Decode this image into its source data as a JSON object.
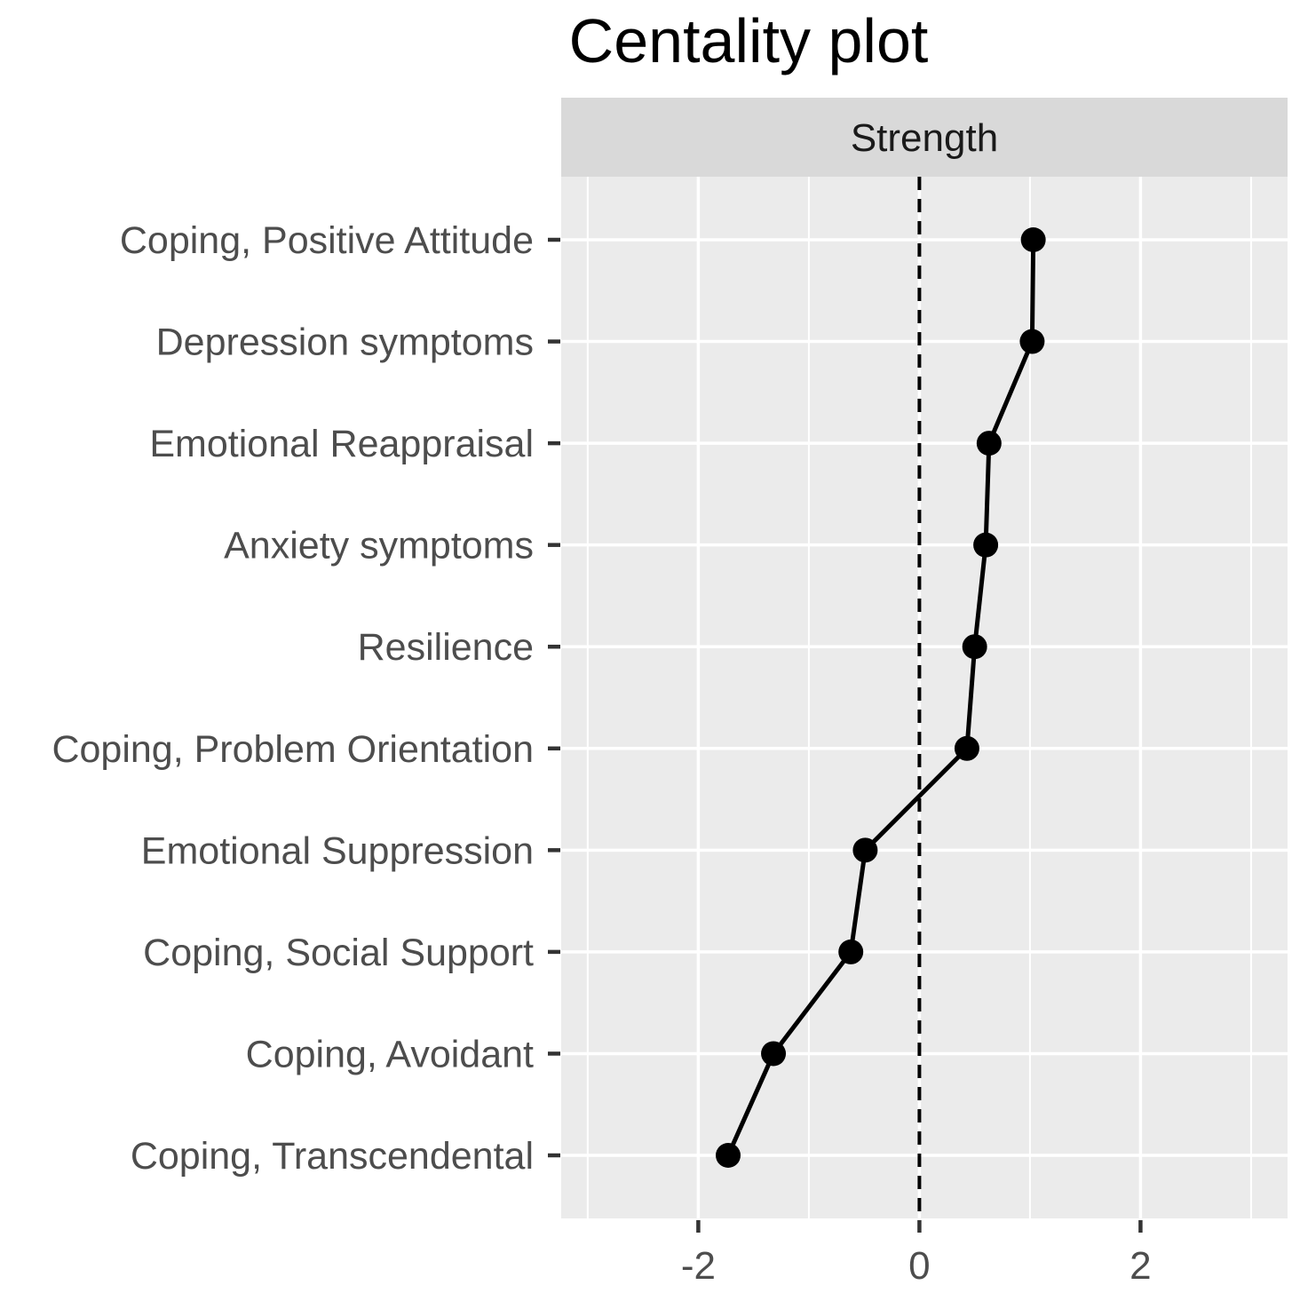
{
  "title": "Centality plot",
  "facet": {
    "label": "Strength"
  },
  "chart_data": {
    "type": "line",
    "orientation": "horizontal_dot_line",
    "title": "Centality plot",
    "facet_label": "Strength",
    "categories": [
      "Coping, Positive Attitude",
      "Depression symptoms",
      "Emotional Reappraisal",
      "Anxiety symptoms",
      "Resilience",
      "Coping, Problem Orientation",
      "Emotional Suppression",
      "Coping, Social Support",
      "Coping, Avoidant",
      "Coping, Transcendental"
    ],
    "values": [
      1.03,
      1.02,
      0.63,
      0.6,
      0.5,
      0.43,
      -0.49,
      -0.62,
      -1.32,
      -1.73
    ],
    "xlabel": "",
    "ylabel": "",
    "xlim": [
      -3.24,
      3.33
    ],
    "x_ticks": [
      -2,
      0,
      2
    ],
    "x_tick_labels": [
      "-2",
      "0",
      "2"
    ],
    "x_minor_gridlines": [
      -3,
      -1,
      1,
      3
    ],
    "reference_line_x": 0,
    "grid": true,
    "legend": "none",
    "style": {
      "panel_bg": "#ebebeb",
      "strip_bg": "#d9d9d9",
      "grid_color": "#ffffff",
      "line_color": "#000000",
      "point_color": "#000000",
      "tick_color": "#333333",
      "label_color": "#4d4d4d",
      "strip_text_color": "#1a1a1a",
      "title_color": "#000000"
    }
  }
}
